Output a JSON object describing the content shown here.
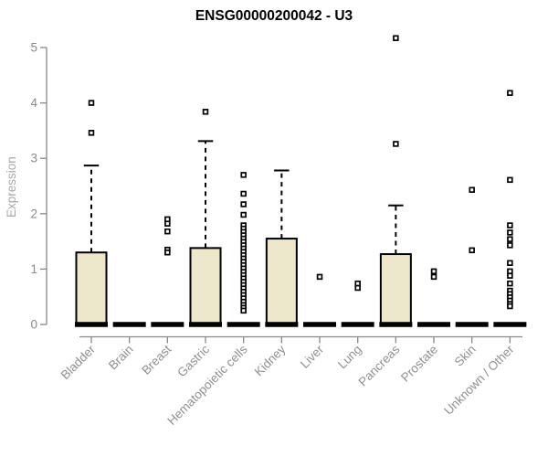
{
  "chart_data": {
    "type": "box",
    "title": "ENSG00000200042 - U3",
    "xlabel": "",
    "ylabel": "Expression",
    "ylim": [
      0,
      5.3
    ],
    "yticks": [
      0,
      1,
      2,
      3,
      4,
      5
    ],
    "grid": false,
    "legend": false,
    "categories": [
      "Bladder",
      "Brain",
      "Breast",
      "Gastric",
      "Hematopoietic cells",
      "Kidney",
      "Liver",
      "Lung",
      "Pancreas",
      "Prostate",
      "Skin",
      "Unknown / Other"
    ],
    "series": [
      {
        "category": "Bladder",
        "q1": 0,
        "median": 0,
        "q3": 1.3,
        "whisker_low": 0,
        "whisker_high": 2.87,
        "outliers": [
          3.46,
          4.0
        ]
      },
      {
        "category": "Brain",
        "q1": 0,
        "median": 0,
        "q3": 0,
        "whisker_low": 0,
        "whisker_high": 0,
        "outliers": []
      },
      {
        "category": "Breast",
        "q1": 0,
        "median": 0,
        "q3": 0,
        "whisker_low": 0,
        "whisker_high": 0,
        "outliers": [
          1.9,
          1.82,
          1.68,
          1.35,
          1.3
        ]
      },
      {
        "category": "Gastric",
        "q1": 0,
        "median": 0,
        "q3": 1.38,
        "whisker_low": 0,
        "whisker_high": 3.31,
        "outliers": [
          3.84
        ]
      },
      {
        "category": "Hematopoietic cells",
        "q1": 0,
        "median": 0,
        "q3": 0,
        "whisker_low": 0,
        "whisker_high": 0,
        "outliers": [
          2.7,
          2.36,
          2.17,
          1.98,
          1.79,
          1.73,
          1.67,
          1.61,
          1.55,
          1.49,
          1.43,
          1.37,
          1.31,
          1.25,
          1.19,
          1.13,
          1.07,
          1.01,
          0.95,
          0.89,
          0.83,
          0.77,
          0.71,
          0.65,
          0.59,
          0.53,
          0.47,
          0.41,
          0.35,
          0.3,
          0.25
        ]
      },
      {
        "category": "Kidney",
        "q1": 0,
        "median": 0,
        "q3": 1.55,
        "whisker_low": 0,
        "whisker_high": 2.78,
        "outliers": []
      },
      {
        "category": "Liver",
        "q1": 0,
        "median": 0,
        "q3": 0,
        "whisker_low": 0,
        "whisker_high": 0,
        "outliers": [
          0.86
        ]
      },
      {
        "category": "Lung",
        "q1": 0,
        "median": 0,
        "q3": 0,
        "whisker_low": 0,
        "whisker_high": 0,
        "outliers": [
          0.74,
          0.66
        ]
      },
      {
        "category": "Pancreas",
        "q1": 0,
        "median": 0,
        "q3": 1.27,
        "whisker_low": 0,
        "whisker_high": 2.15,
        "outliers": [
          3.26,
          5.17
        ]
      },
      {
        "category": "Prostate",
        "q1": 0,
        "median": 0,
        "q3": 0,
        "whisker_low": 0,
        "whisker_high": 0,
        "outliers": [
          0.96,
          0.86
        ]
      },
      {
        "category": "Skin",
        "q1": 0,
        "median": 0,
        "q3": 0,
        "whisker_low": 0,
        "whisker_high": 0,
        "outliers": [
          2.43,
          1.34
        ]
      },
      {
        "category": "Unknown / Other",
        "q1": 0,
        "median": 0,
        "q3": 0,
        "whisker_low": 0,
        "whisker_high": 0,
        "outliers": [
          4.18,
          2.61,
          1.79,
          1.66,
          1.54,
          1.43,
          1.11,
          0.96,
          0.88,
          0.74,
          0.61,
          0.55,
          0.49,
          0.43,
          0.37,
          0.33
        ]
      }
    ],
    "colors": {
      "box_fill": "#EDE7CB",
      "box_stroke": "#000000",
      "median": "#000000",
      "outlier_stroke": "#000000",
      "outlier_fill": "#ffffff",
      "axis": "#888888",
      "tick_text": "#8a8a8a",
      "xlabel_text": "#909090",
      "ylabel_text": "#a8a8a8",
      "title": "#000000",
      "background": "#ffffff"
    }
  }
}
